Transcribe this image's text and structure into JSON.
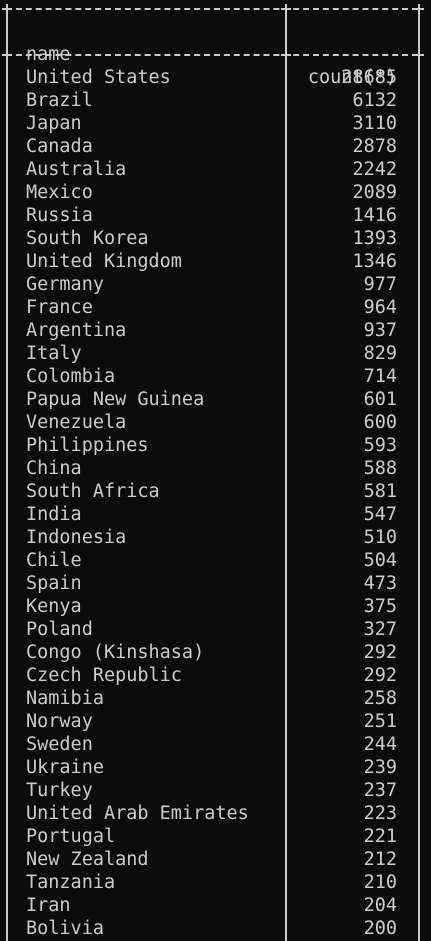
{
  "table": {
    "headers": [
      "name",
      "count(*)"
    ],
    "rows": [
      [
        "United States",
        "28685"
      ],
      [
        "Brazil",
        "6132"
      ],
      [
        "Japan",
        "3110"
      ],
      [
        "Canada",
        "2878"
      ],
      [
        "Australia",
        "2242"
      ],
      [
        "Mexico",
        "2089"
      ],
      [
        "Russia",
        "1416"
      ],
      [
        "South Korea",
        "1393"
      ],
      [
        "United Kingdom",
        "1346"
      ],
      [
        "Germany",
        "977"
      ],
      [
        "France",
        "964"
      ],
      [
        "Argentina",
        "937"
      ],
      [
        "Italy",
        "829"
      ],
      [
        "Colombia",
        "714"
      ],
      [
        "Papua New Guinea",
        "601"
      ],
      [
        "Venezuela",
        "600"
      ],
      [
        "Philippines",
        "593"
      ],
      [
        "China",
        "588"
      ],
      [
        "South Africa",
        "581"
      ],
      [
        "India",
        "547"
      ],
      [
        "Indonesia",
        "510"
      ],
      [
        "Chile",
        "504"
      ],
      [
        "Spain",
        "473"
      ],
      [
        "Kenya",
        "375"
      ],
      [
        "Poland",
        "327"
      ],
      [
        "Congo (Kinshasa)",
        "292"
      ],
      [
        "Czech Republic",
        "292"
      ],
      [
        "Namibia",
        "258"
      ],
      [
        "Norway",
        "251"
      ],
      [
        "Sweden",
        "244"
      ],
      [
        "Ukraine",
        "239"
      ],
      [
        "Turkey",
        "237"
      ],
      [
        "United Arab Emirates",
        "223"
      ],
      [
        "Portugal",
        "221"
      ],
      [
        "New Zealand",
        "212"
      ],
      [
        "Tanzania",
        "210"
      ],
      [
        "Iran",
        "204"
      ],
      [
        "Bolivia",
        "200"
      ]
    ]
  },
  "colors": {
    "background": "#0c0c0c",
    "foreground": "#cccccc"
  }
}
